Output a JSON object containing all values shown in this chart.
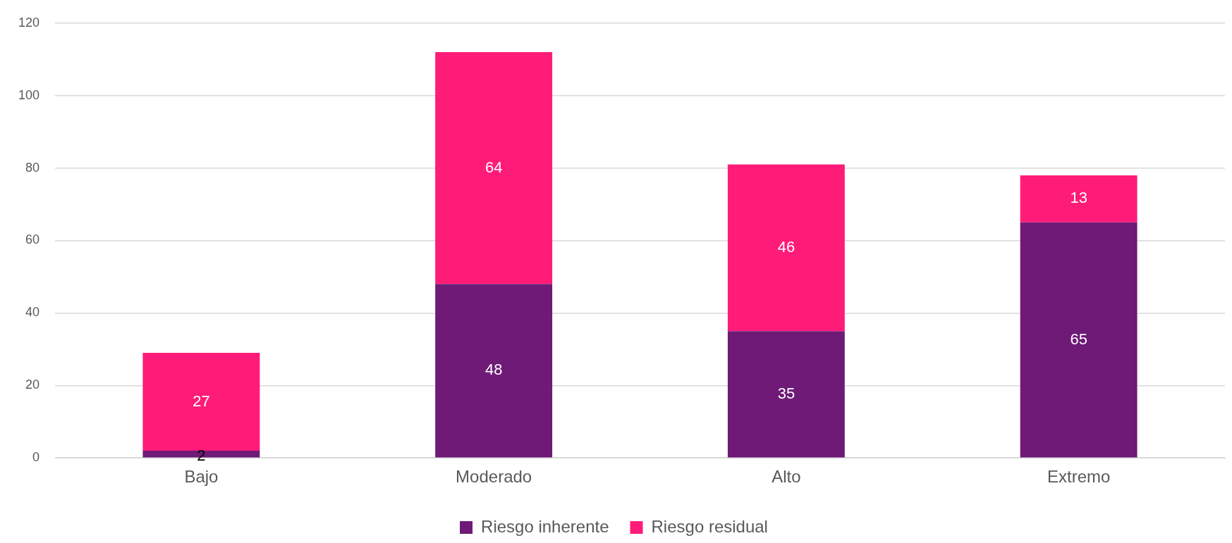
{
  "chart_data": {
    "type": "bar",
    "stacked": true,
    "categories": [
      "Bajo",
      "Moderado",
      "Alto",
      "Extremo"
    ],
    "series": [
      {
        "name": "Riesgo inherente",
        "color": "#6e1a76",
        "values": [
          2,
          48,
          35,
          65
        ]
      },
      {
        "name": "Riesgo residual",
        "color": "#ff1b78",
        "values": [
          27,
          64,
          46,
          13
        ]
      }
    ],
    "ylim": [
      0,
      120
    ],
    "yticks": [
      0,
      20,
      40,
      60,
      80,
      100,
      120
    ],
    "grid": "y",
    "legend": "bottom",
    "data_labels": true
  }
}
